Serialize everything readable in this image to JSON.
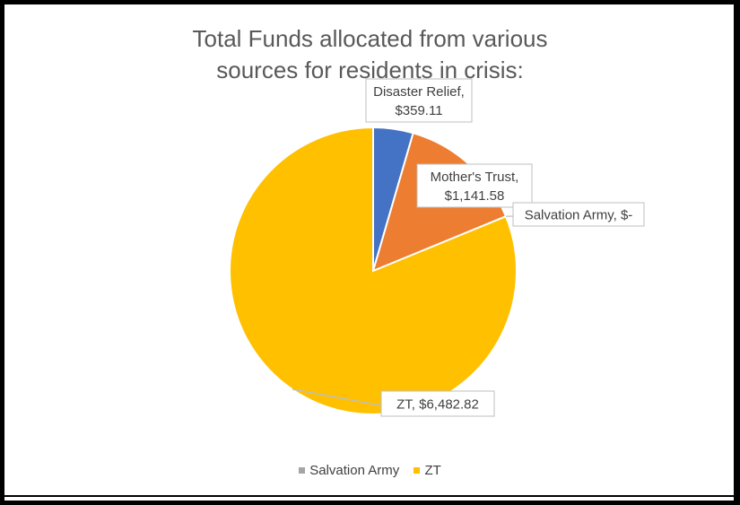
{
  "chart_data": {
    "type": "pie",
    "title_line1": "Total Funds allocated from various",
    "title_line2": "sources for residents in crisis:",
    "slices": [
      {
        "name": "Disaster Relief",
        "value": 359.11,
        "label": "Disaster Relief,\n$359.11",
        "color": "#4472C4"
      },
      {
        "name": "Mother's Trust",
        "value": 1141.58,
        "label": "Mother's Trust,\n$1,141.58",
        "color": "#ED7D31"
      },
      {
        "name": "Salvation Army",
        "value": 0,
        "label": "Salvation Army,  $-",
        "color": "#A5A5A5"
      },
      {
        "name": "ZT",
        "value": 6482.82,
        "label": "ZT,  $6,482.82",
        "color": "#FFC000"
      }
    ],
    "legend": [
      {
        "name": "Salvation Army",
        "color": "#A5A5A5"
      },
      {
        "name": "ZT",
        "color": "#FFC000"
      }
    ],
    "legend_position": "bottom"
  }
}
